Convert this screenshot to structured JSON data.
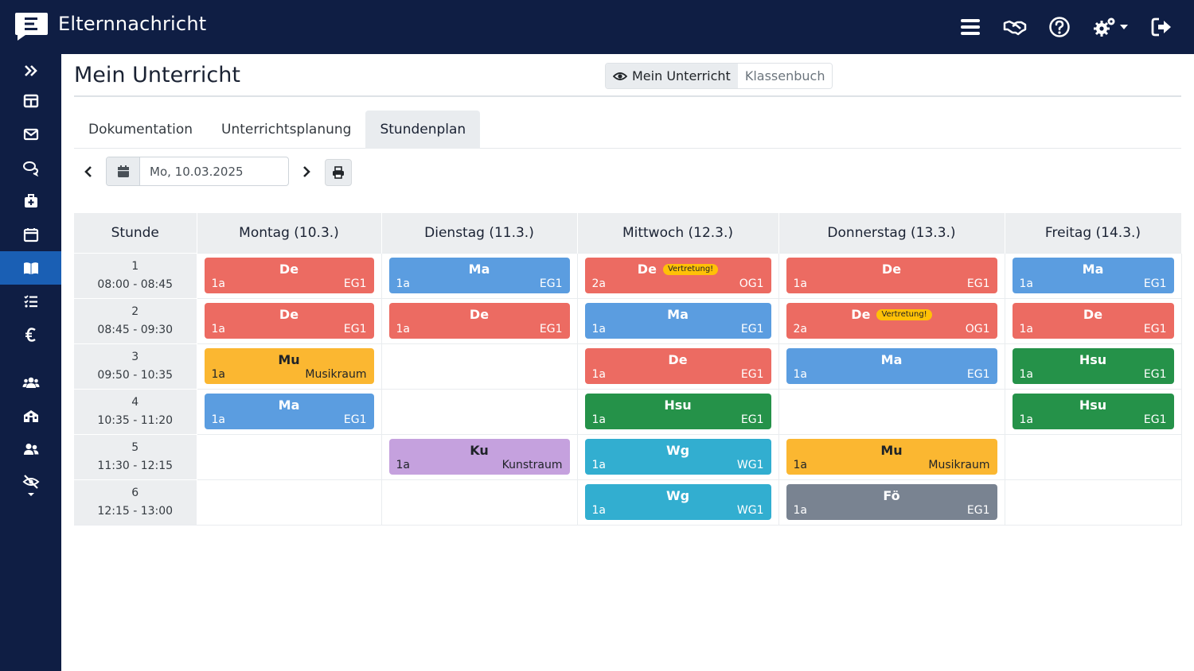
{
  "app": {
    "title": "Elternnachricht"
  },
  "page": {
    "title": "Mein Unterricht"
  },
  "view_toggle": {
    "active": "Mein Unterricht",
    "inactive": "Klassenbuch"
  },
  "tabs": [
    "Dokumentation",
    "Unterrichtsplanung",
    "Stundenplan"
  ],
  "date": {
    "value": "Mo, 10.03.2025"
  },
  "colors": {
    "De": "#ec6b62",
    "Ma": "#5b9de0",
    "Mu": "#fbb731",
    "Hsu": "#259249",
    "Ku": "#c5a1de",
    "Wg": "#32aed0",
    "Fo": "#798391",
    "nav": "#0f1e44",
    "active": "#1a5fb4"
  },
  "timetable": {
    "header_hour": "Stunde",
    "days": [
      "Montag (10.3.)",
      "Dienstag (11.3.)",
      "Mittwoch (12.3.)",
      "Donnerstag (13.3.)",
      "Freitag (14.3.)"
    ],
    "hours": [
      {
        "num": "1",
        "time": "08:00 - 08:45"
      },
      {
        "num": "2",
        "time": "08:45 - 09:30"
      },
      {
        "num": "3",
        "time": "09:50 - 10:35"
      },
      {
        "num": "4",
        "time": "10:35 - 11:20"
      },
      {
        "num": "5",
        "time": "11:30 - 12:15"
      },
      {
        "num": "6",
        "time": "12:15 - 13:00"
      }
    ],
    "cells": [
      [
        {
          "subject": "De",
          "class": "1a",
          "room": "EG1",
          "color": "De"
        },
        {
          "subject": "Ma",
          "class": "1a",
          "room": "EG1",
          "color": "Ma"
        },
        {
          "subject": "De",
          "class": "2a",
          "room": "OG1",
          "color": "De",
          "badge": "Vertretung!"
        },
        {
          "subject": "De",
          "class": "1a",
          "room": "EG1",
          "color": "De"
        },
        {
          "subject": "Ma",
          "class": "1a",
          "room": "EG1",
          "color": "Ma"
        }
      ],
      [
        {
          "subject": "De",
          "class": "1a",
          "room": "EG1",
          "color": "De"
        },
        {
          "subject": "De",
          "class": "1a",
          "room": "EG1",
          "color": "De"
        },
        {
          "subject": "Ma",
          "class": "1a",
          "room": "EG1",
          "color": "Ma"
        },
        {
          "subject": "De",
          "class": "2a",
          "room": "OG1",
          "color": "De",
          "badge": "Vertretung!"
        },
        {
          "subject": "De",
          "class": "1a",
          "room": "EG1",
          "color": "De"
        }
      ],
      [
        {
          "subject": "Mu",
          "class": "1a",
          "room": "Musikraum",
          "color": "Mu",
          "dark": true
        },
        null,
        {
          "subject": "De",
          "class": "1a",
          "room": "EG1",
          "color": "De"
        },
        {
          "subject": "Ma",
          "class": "1a",
          "room": "EG1",
          "color": "Ma"
        },
        {
          "subject": "Hsu",
          "class": "1a",
          "room": "EG1",
          "color": "Hsu"
        }
      ],
      [
        {
          "subject": "Ma",
          "class": "1a",
          "room": "EG1",
          "color": "Ma"
        },
        null,
        {
          "subject": "Hsu",
          "class": "1a",
          "room": "EG1",
          "color": "Hsu"
        },
        null,
        {
          "subject": "Hsu",
          "class": "1a",
          "room": "EG1",
          "color": "Hsu"
        }
      ],
      [
        null,
        {
          "subject": "Ku",
          "class": "1a",
          "room": "Kunstraum",
          "color": "Ku",
          "dark": true
        },
        {
          "subject": "Wg",
          "class": "1a",
          "room": "WG1",
          "color": "Wg"
        },
        {
          "subject": "Mu",
          "class": "1a",
          "room": "Musikraum",
          "color": "Mu",
          "dark": true
        },
        null
      ],
      [
        null,
        null,
        {
          "subject": "Wg",
          "class": "1a",
          "room": "WG1",
          "color": "Wg"
        },
        {
          "subject": "Fö",
          "class": "1a",
          "room": "EG1",
          "color": "Fo"
        },
        null
      ]
    ]
  }
}
